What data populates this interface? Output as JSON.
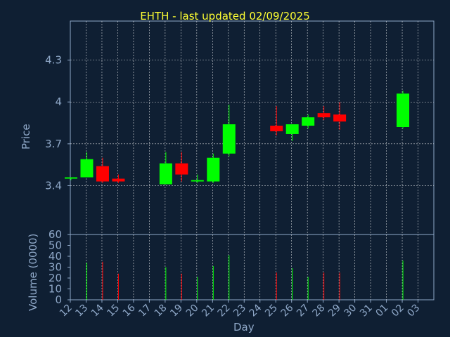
{
  "title": "EHTH - last updated 02/09/2025",
  "chart_data": {
    "type": "candlestick",
    "title": "EHTH - last updated 02/09/2025",
    "xlabel": "Day",
    "ylabel_price": "Price",
    "ylabel_volume": "Volume (0000)",
    "price_ylim": [
      3.05,
      4.58
    ],
    "price_ticks": [
      "3.4",
      "3.7",
      "4",
      "4.3"
    ],
    "volume_ylim": [
      0,
      60
    ],
    "volume_ticks": [
      "0",
      "10",
      "20",
      "30",
      "40",
      "50",
      "60"
    ],
    "x_ticks": [
      "12",
      "13",
      "14",
      "15",
      "16",
      "17",
      "18",
      "19",
      "20",
      "21",
      "22",
      "23",
      "24",
      "25",
      "26",
      "27",
      "28",
      "29",
      "30",
      "31",
      "01",
      "02",
      "03"
    ],
    "grid": true,
    "colors": {
      "up": "#00ff00",
      "down": "#ff0000",
      "title": "#ffff33",
      "axis": "#8fa8c8",
      "background": "#0f1f33"
    },
    "candles": [
      {
        "x": "12",
        "open": 3.45,
        "high": 3.46,
        "low": 3.44,
        "close": 3.46,
        "volume": 0
      },
      {
        "x": "13",
        "open": 3.46,
        "high": 3.64,
        "low": 3.46,
        "close": 3.59,
        "volume": 34
      },
      {
        "x": "14",
        "open": 3.54,
        "high": 3.6,
        "low": 3.42,
        "close": 3.43,
        "volume": 35
      },
      {
        "x": "15",
        "open": 3.45,
        "high": 3.48,
        "low": 3.42,
        "close": 3.43,
        "volume": 24
      },
      {
        "x": "18",
        "open": 3.41,
        "high": 3.64,
        "low": 3.41,
        "close": 3.56,
        "volume": 30
      },
      {
        "x": "19",
        "open": 3.56,
        "high": 3.64,
        "low": 3.43,
        "close": 3.48,
        "volume": 24
      },
      {
        "x": "20",
        "open": 3.43,
        "high": 3.48,
        "low": 3.42,
        "close": 3.44,
        "volume": 21
      },
      {
        "x": "21",
        "open": 3.43,
        "high": 3.63,
        "low": 3.42,
        "close": 3.6,
        "volume": 31
      },
      {
        "x": "22",
        "open": 3.63,
        "high": 3.98,
        "low": 3.61,
        "close": 3.84,
        "volume": 41
      },
      {
        "x": "25",
        "open": 3.83,
        "high": 3.97,
        "low": 3.76,
        "close": 3.79,
        "volume": 25
      },
      {
        "x": "26",
        "open": 3.77,
        "high": 3.84,
        "low": 3.72,
        "close": 3.84,
        "volume": 29
      },
      {
        "x": "27",
        "open": 3.83,
        "high": 3.91,
        "low": 3.81,
        "close": 3.89,
        "volume": 21
      },
      {
        "x": "28",
        "open": 3.92,
        "high": 3.97,
        "low": 3.87,
        "close": 3.89,
        "volume": 25
      },
      {
        "x": "29",
        "open": 3.91,
        "high": 4.0,
        "low": 3.8,
        "close": 3.86,
        "volume": 25
      },
      {
        "x": "02",
        "open": 3.82,
        "high": 4.08,
        "low": 3.81,
        "close": 4.06,
        "volume": 36
      }
    ]
  }
}
